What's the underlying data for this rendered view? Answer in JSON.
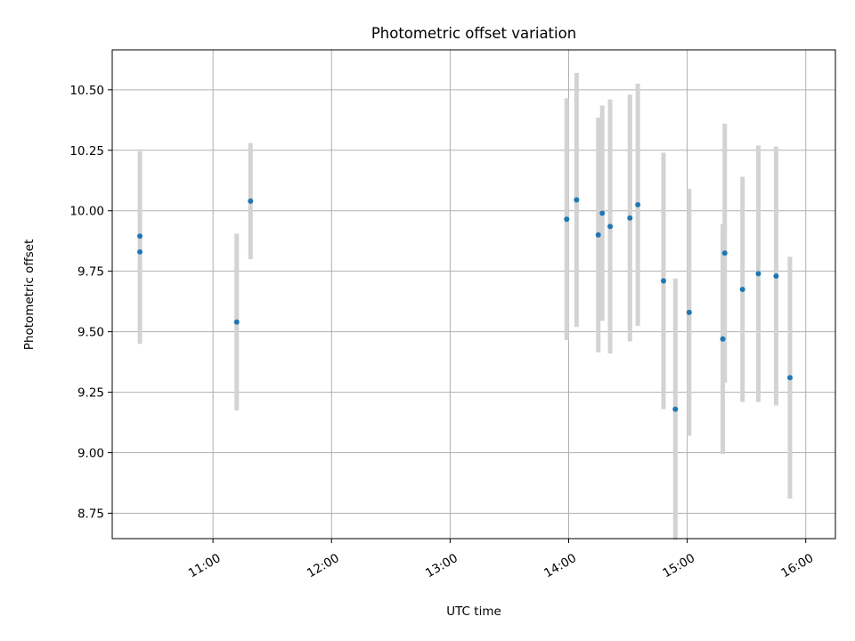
{
  "chart_data": {
    "type": "scatter",
    "title": "Photometric offset variation",
    "xlabel": "UTC time",
    "ylabel": "Photometric offset",
    "x_ticks": [
      "11:00",
      "12:00",
      "13:00",
      "14:00",
      "15:00",
      "16:00"
    ],
    "y_ticks": [
      "8.75",
      "9.00",
      "9.25",
      "9.50",
      "9.75",
      "10.00",
      "10.25",
      "10.50"
    ],
    "xlim": [
      "10:09",
      "16:15"
    ],
    "ylim": [
      8.645,
      10.665
    ],
    "grid": true,
    "colors": {
      "point": "#1f77b4",
      "errorbar": "#d3d3d3",
      "grid": "#b0b0b0"
    },
    "points": [
      {
        "t": "10:23",
        "y": 9.895,
        "err": 0.35
      },
      {
        "t": "10:23",
        "y": 9.83,
        "err": 0.38
      },
      {
        "t": "11:12",
        "y": 9.54,
        "err": 0.365
      },
      {
        "t": "11:19",
        "y": 10.04,
        "err": 0.24
      },
      {
        "t": "13:59",
        "y": 9.965,
        "err": 0.5
      },
      {
        "t": "14:04",
        "y": 10.045,
        "err": 0.525
      },
      {
        "t": "14:15",
        "y": 9.9,
        "err": 0.485
      },
      {
        "t": "14:17",
        "y": 9.99,
        "err": 0.445
      },
      {
        "t": "14:21",
        "y": 9.935,
        "err": 0.525
      },
      {
        "t": "14:31",
        "y": 9.97,
        "err": 0.51
      },
      {
        "t": "14:35",
        "y": 10.025,
        "err": 0.5
      },
      {
        "t": "14:48",
        "y": 9.71,
        "err": 0.53
      },
      {
        "t": "14:54",
        "y": 9.18,
        "err": 0.54
      },
      {
        "t": "15:01",
        "y": 9.58,
        "err": 0.51
      },
      {
        "t": "15:18",
        "y": 9.47,
        "err": 0.475
      },
      {
        "t": "15:19",
        "y": 9.825,
        "err": 0.535
      },
      {
        "t": "15:28",
        "y": 9.675,
        "err": 0.465
      },
      {
        "t": "15:36",
        "y": 9.74,
        "err": 0.53
      },
      {
        "t": "15:45",
        "y": 9.73,
        "err": 0.535
      },
      {
        "t": "15:52",
        "y": 9.31,
        "err": 0.5
      }
    ]
  }
}
